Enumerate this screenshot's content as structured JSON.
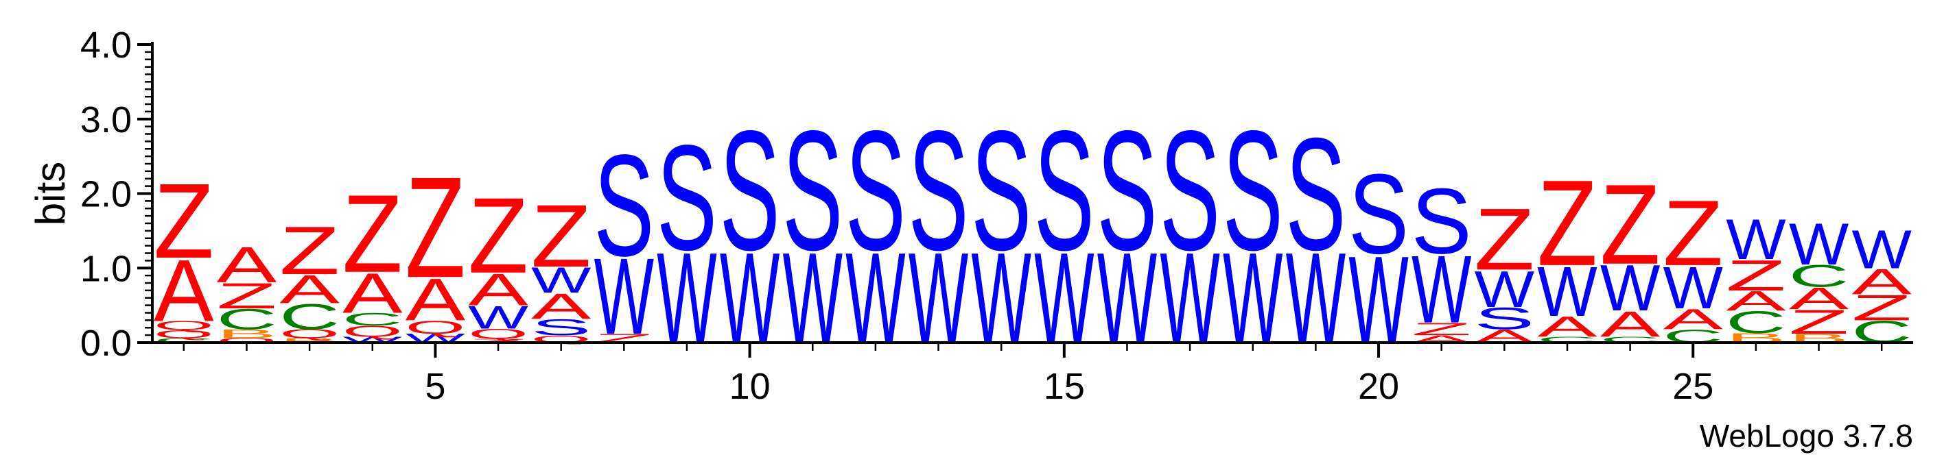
{
  "chart_data": {
    "type": "sequence-logo",
    "ylabel": "bits",
    "ylim": [
      0,
      4
    ],
    "yticks": [
      "0.0",
      "1.0",
      "2.0",
      "3.0",
      "4.0"
    ],
    "xticks": [
      5,
      10,
      15,
      20,
      25
    ],
    "xlim": [
      0.5,
      28.5
    ],
    "credit": "WebLogo 3.7.8",
    "colors": {
      "Z": "#ff0000",
      "A": "#ff0000",
      "Q": "#ff0000",
      "S": "#0000ff",
      "W": "#0000ff",
      "C": "#008000",
      "B": "#ff8000"
    },
    "positions": [
      {
        "pos": 1,
        "stack": [
          {
            "l": "C",
            "h": 0.06
          },
          {
            "l": "Q",
            "h": 0.11
          },
          {
            "l": "Q",
            "h": 0.12
          },
          {
            "l": "A",
            "h": 0.85
          },
          {
            "l": "Z",
            "h": 1.03
          }
        ]
      },
      {
        "pos": 2,
        "stack": [
          {
            "l": "Q",
            "h": 0.06
          },
          {
            "l": "B",
            "h": 0.12
          },
          {
            "l": "C",
            "h": 0.28
          },
          {
            "l": "Z",
            "h": 0.35
          },
          {
            "l": "A",
            "h": 0.49
          }
        ]
      },
      {
        "pos": 3,
        "stack": [
          {
            "l": "B",
            "h": 0.06
          },
          {
            "l": "Q",
            "h": 0.12
          },
          {
            "l": "C",
            "h": 0.35
          },
          {
            "l": "A",
            "h": 0.39
          },
          {
            "l": "Z",
            "h": 0.66
          }
        ]
      },
      {
        "pos": 4,
        "stack": [
          {
            "l": "W",
            "h": 0.08
          },
          {
            "l": "Q",
            "h": 0.15
          },
          {
            "l": "C",
            "h": 0.17
          },
          {
            "l": "A",
            "h": 0.55
          },
          {
            "l": "Z",
            "h": 1.07
          }
        ]
      },
      {
        "pos": 5,
        "stack": [
          {
            "l": "W",
            "h": 0.12
          },
          {
            "l": "Q",
            "h": 0.18
          },
          {
            "l": "A",
            "h": 0.58
          },
          {
            "l": "Z",
            "h": 1.39
          }
        ]
      },
      {
        "pos": 6,
        "stack": [
          {
            "l": "Z",
            "h": 0.05
          },
          {
            "l": "Q",
            "h": 0.14
          },
          {
            "l": "W",
            "h": 0.31
          },
          {
            "l": "A",
            "h": 0.44
          },
          {
            "l": "Z",
            "h": 1.04
          }
        ]
      },
      {
        "pos": 7,
        "stack": [
          {
            "l": "Q",
            "h": 0.1
          },
          {
            "l": "S",
            "h": 0.22
          },
          {
            "l": "A",
            "h": 0.35
          },
          {
            "l": "W",
            "h": 0.35
          },
          {
            "l": "Z",
            "h": 0.86
          }
        ]
      },
      {
        "pos": 8,
        "stack": [
          {
            "l": "Z",
            "h": 0.12
          },
          {
            "l": "W",
            "h": 1.05
          },
          {
            "l": "S",
            "h": 1.4
          }
        ]
      },
      {
        "pos": 9,
        "stack": [
          {
            "l": "W",
            "h": 1.25
          },
          {
            "l": "S",
            "h": 1.45
          }
        ]
      },
      {
        "pos": 10,
        "stack": [
          {
            "l": "W",
            "h": 1.25
          },
          {
            "l": "S",
            "h": 1.65
          }
        ]
      },
      {
        "pos": 11,
        "stack": [
          {
            "l": "W",
            "h": 1.25
          },
          {
            "l": "S",
            "h": 1.65
          }
        ]
      },
      {
        "pos": 12,
        "stack": [
          {
            "l": "W",
            "h": 1.25
          },
          {
            "l": "S",
            "h": 1.65
          }
        ]
      },
      {
        "pos": 13,
        "stack": [
          {
            "l": "W",
            "h": 1.25
          },
          {
            "l": "S",
            "h": 1.65
          }
        ]
      },
      {
        "pos": 14,
        "stack": [
          {
            "l": "W",
            "h": 1.25
          },
          {
            "l": "S",
            "h": 1.65
          }
        ]
      },
      {
        "pos": 15,
        "stack": [
          {
            "l": "W",
            "h": 1.25
          },
          {
            "l": "S",
            "h": 1.65
          }
        ]
      },
      {
        "pos": 16,
        "stack": [
          {
            "l": "W",
            "h": 1.25
          },
          {
            "l": "S",
            "h": 1.65
          }
        ]
      },
      {
        "pos": 17,
        "stack": [
          {
            "l": "W",
            "h": 1.25
          },
          {
            "l": "S",
            "h": 1.65
          }
        ]
      },
      {
        "pos": 18,
        "stack": [
          {
            "l": "W",
            "h": 1.25
          },
          {
            "l": "S",
            "h": 1.65
          }
        ]
      },
      {
        "pos": 19,
        "stack": [
          {
            "l": "W",
            "h": 1.25
          },
          {
            "l": "S",
            "h": 1.55
          }
        ]
      },
      {
        "pos": 20,
        "stack": [
          {
            "l": "W",
            "h": 1.2
          },
          {
            "l": "S",
            "h": 1.1
          }
        ]
      },
      {
        "pos": 21,
        "stack": [
          {
            "l": "A",
            "h": 0.1
          },
          {
            "l": "Z",
            "h": 0.17
          },
          {
            "l": "W",
            "h": 0.93
          },
          {
            "l": "S",
            "h": 0.9
          }
        ]
      },
      {
        "pos": 22,
        "stack": [
          {
            "l": "A",
            "h": 0.18
          },
          {
            "l": "S",
            "h": 0.3
          },
          {
            "l": "W",
            "h": 0.5
          },
          {
            "l": "Z",
            "h": 0.85
          }
        ]
      },
      {
        "pos": 23,
        "stack": [
          {
            "l": "C",
            "h": 0.08
          },
          {
            "l": "A",
            "h": 0.28
          },
          {
            "l": "W",
            "h": 0.68
          },
          {
            "l": "Z",
            "h": 1.18
          }
        ]
      },
      {
        "pos": 24,
        "stack": [
          {
            "l": "C",
            "h": 0.08
          },
          {
            "l": "A",
            "h": 0.35
          },
          {
            "l": "W",
            "h": 0.63
          },
          {
            "l": "Z",
            "h": 1.1
          }
        ]
      },
      {
        "pos": 25,
        "stack": [
          {
            "l": "C",
            "h": 0.18
          },
          {
            "l": "A",
            "h": 0.28
          },
          {
            "l": "W",
            "h": 0.58
          },
          {
            "l": "Z",
            "h": 0.9
          }
        ]
      },
      {
        "pos": 26,
        "stack": [
          {
            "l": "B",
            "h": 0.13
          },
          {
            "l": "C",
            "h": 0.3
          },
          {
            "l": "A",
            "h": 0.27
          },
          {
            "l": "Z",
            "h": 0.42
          },
          {
            "l": "W",
            "h": 0.55
          }
        ]
      },
      {
        "pos": 27,
        "stack": [
          {
            "l": "B",
            "h": 0.12
          },
          {
            "l": "Z",
            "h": 0.33
          },
          {
            "l": "A",
            "h": 0.3
          },
          {
            "l": "C",
            "h": 0.3
          },
          {
            "l": "W",
            "h": 0.57
          }
        ]
      },
      {
        "pos": 28,
        "stack": [
          {
            "l": "C",
            "h": 0.3
          },
          {
            "l": "Z",
            "h": 0.35
          },
          {
            "l": "A",
            "h": 0.35
          },
          {
            "l": "W",
            "h": 0.53
          }
        ]
      }
    ]
  }
}
